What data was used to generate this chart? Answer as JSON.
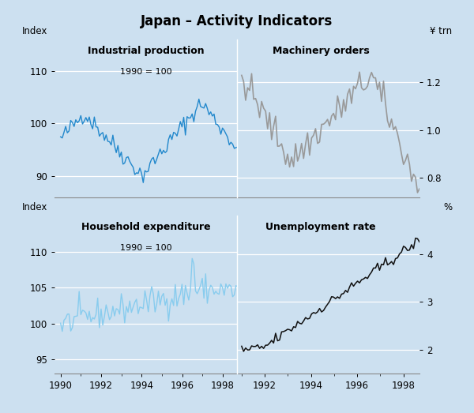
{
  "title": "Japan – Activity Indicators",
  "bg_color": "#cce0f0",
  "plot_bg_color": "#cce0f0",
  "top_left": {
    "title": "Industrial production",
    "subtitle": "1990 = 100",
    "ylabel": "Index",
    "ylim": [
      86,
      116
    ],
    "yticks": [
      90,
      100,
      110
    ],
    "color": "#2288cc",
    "linewidth": 1.0
  },
  "top_right": {
    "title": "Machinery orders",
    "ylabel": "¥ trn",
    "ylim": [
      0.72,
      1.38
    ],
    "yticks": [
      0.8,
      1.0,
      1.2
    ],
    "color": "#999999",
    "linewidth": 1.2
  },
  "bottom_left": {
    "title": "Household expenditure",
    "subtitle": "1990 = 100",
    "ylabel": "Index",
    "ylim": [
      93,
      115
    ],
    "yticks": [
      95,
      100,
      105,
      110
    ],
    "color": "#88ccee",
    "linewidth": 1.0
  },
  "bottom_right": {
    "title": "Unemployment rate",
    "ylabel": "%",
    "ylim": [
      1.5,
      4.8
    ],
    "yticks": [
      2,
      3,
      4
    ],
    "color": "#111111",
    "linewidth": 1.1
  },
  "xstart_tl": 1989.7,
  "xend_tl": 1998.7,
  "xstart_tr": 1990.8,
  "xend_tr": 1998.7,
  "xstart_bl": 1989.7,
  "xend_bl": 1998.7,
  "xstart_br": 1990.8,
  "xend_br": 1998.7,
  "xticks_left": [
    1990,
    1992,
    1994,
    1996,
    1998
  ],
  "xticks_right": [
    1992,
    1994,
    1996,
    1998
  ]
}
